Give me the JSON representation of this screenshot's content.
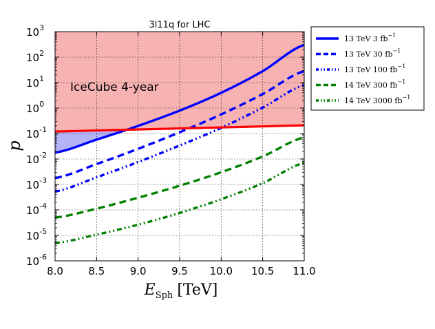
{
  "chart_data": {
    "type": "line",
    "title": "3l11q for LHC",
    "xlabel_main": "E",
    "xlabel_sub": "Sph",
    "xlabel_unit": "[TeV]",
    "ylabel": "p",
    "xlim": [
      8.0,
      11.0
    ],
    "ylim_log10": [
      -6,
      3
    ],
    "grid": true,
    "x_ticks": [
      "8.0",
      "8.5",
      "9.0",
      "9.5",
      "10.0",
      "10.5",
      "11.0"
    ],
    "y_ticks": [
      {
        "base": "10",
        "exp": "3"
      },
      {
        "base": "10",
        "exp": "2"
      },
      {
        "base": "10",
        "exp": "1"
      },
      {
        "base": "10",
        "exp": "0"
      },
      {
        "base": "10",
        "exp": "-1"
      },
      {
        "base": "10",
        "exp": "-2"
      },
      {
        "base": "10",
        "exp": "-3"
      },
      {
        "base": "10",
        "exp": "-4"
      },
      {
        "base": "10",
        "exp": "-5"
      },
      {
        "base": "10",
        "exp": "-6"
      }
    ],
    "x": [
      8.0,
      8.5,
      9.0,
      9.5,
      10.0,
      10.5,
      11.0
    ],
    "region_label": "IceCube 4-year",
    "excluded_region_color": "#f7b2b2",
    "overlap_region_color": "#b3b3f5",
    "icecube_bound": {
      "name": "IceCube 4-year bound",
      "color": "#ff0000",
      "log10_values": [
        -0.92,
        -0.88,
        -0.84,
        -0.8,
        -0.76,
        -0.72,
        -0.68
      ]
    },
    "series": [
      {
        "name": "13 TeV 3 fb",
        "sup": "−1",
        "color": "#0000ff",
        "style": "solid",
        "log10_values": [
          -1.75,
          -1.24,
          -0.7,
          -0.1,
          0.6,
          1.45,
          2.48
        ]
      },
      {
        "name": "13 TeV 30 fb",
        "sup": "−1",
        "color": "#0000ff",
        "style": "dashed",
        "log10_values": [
          -2.75,
          -2.2,
          -1.6,
          -0.95,
          -0.25,
          0.55,
          1.45
        ]
      },
      {
        "name": "13 TeV 100 fb",
        "sup": "−1",
        "color": "#0000ff",
        "style": "dashdotdot",
        "log10_values": [
          -3.28,
          -2.72,
          -2.12,
          -1.47,
          -0.78,
          0.02,
          0.9
        ]
      },
      {
        "name": "14 TeV 300 fb",
        "sup": "−1",
        "color": "#008000",
        "style": "dashed",
        "log10_values": [
          -4.3,
          -3.95,
          -3.52,
          -3.05,
          -2.52,
          -1.9,
          -1.15
        ]
      },
      {
        "name": "14 TeV 3000 fb",
        "sup": "−1",
        "color": "#008000",
        "style": "dashdotdot",
        "log10_values": [
          -5.3,
          -4.97,
          -4.58,
          -4.12,
          -3.58,
          -2.95,
          -2.15
        ]
      }
    ]
  }
}
